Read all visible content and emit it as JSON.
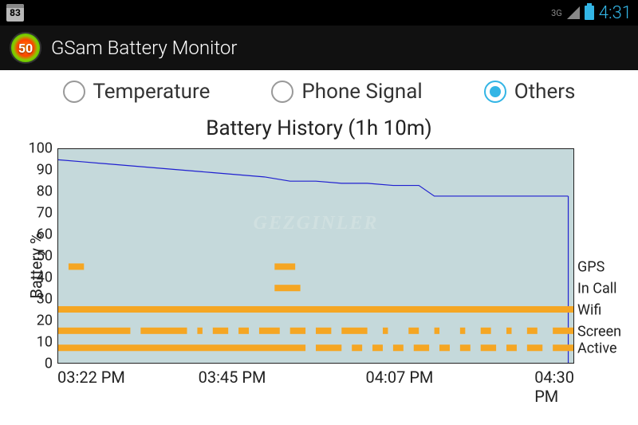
{
  "status_bar": {
    "calendar_day": "83",
    "network": "3G",
    "clock": "4:31",
    "colors": {
      "bg": "#000000",
      "accent": "#33b5e5",
      "muted": "#888888"
    }
  },
  "action_bar": {
    "icon_value": "50",
    "title": "GSam Battery Monitor",
    "bg": "#111111"
  },
  "tabs": {
    "items": [
      {
        "label": "Temperature",
        "selected": false
      },
      {
        "label": "Phone Signal",
        "selected": false
      },
      {
        "label": "Others",
        "selected": true
      }
    ],
    "accent": "#33b5e5"
  },
  "chart": {
    "title": "Battery History (1h 10m)",
    "y_label": "Battery %",
    "y_ticks": [
      0,
      10,
      20,
      30,
      40,
      50,
      60,
      70,
      80,
      90,
      100
    ],
    "ylim": [
      0,
      100
    ],
    "x_ticks": [
      "03:22 PM",
      "03:45 PM",
      "04:07 PM",
      "04:30 PM"
    ],
    "x_positions": [
      0,
      33.8,
      66.2,
      100
    ],
    "plot_bg": "#c5d9db",
    "line_color": "#2020d0",
    "fill_color": "#c5d9db",
    "battery_points": [
      [
        0,
        95
      ],
      [
        5,
        94
      ],
      [
        10,
        93
      ],
      [
        20,
        91
      ],
      [
        30,
        89
      ],
      [
        40,
        87
      ],
      [
        45,
        85
      ],
      [
        50,
        85
      ],
      [
        55,
        84
      ],
      [
        60,
        84
      ],
      [
        65,
        83
      ],
      [
        68,
        83
      ],
      [
        70,
        83
      ],
      [
        73,
        78
      ],
      [
        76,
        78
      ],
      [
        80,
        78
      ],
      [
        85,
        78
      ],
      [
        90,
        78
      ],
      [
        95,
        78
      ],
      [
        99,
        78
      ]
    ],
    "state_bar_color": "#f5a623",
    "state_rows": [
      {
        "label": "GPS",
        "y": 45,
        "segments": [
          [
            2,
            5
          ],
          [
            42,
            46
          ]
        ]
      },
      {
        "label": "In Call",
        "y": 35,
        "segments": [
          [
            42,
            47
          ]
        ]
      },
      {
        "label": "Wifi",
        "y": 25,
        "segments": [
          [
            0,
            100
          ]
        ]
      },
      {
        "label": "Screen",
        "y": 15,
        "segments": [
          [
            0,
            14
          ],
          [
            16,
            25
          ],
          [
            27,
            28
          ],
          [
            30,
            33
          ],
          [
            35,
            37
          ],
          [
            39,
            43
          ],
          [
            45,
            48
          ],
          [
            50,
            53
          ],
          [
            55,
            60
          ],
          [
            63,
            64
          ],
          [
            68,
            70
          ],
          [
            73,
            74
          ],
          [
            78,
            79
          ],
          [
            82,
            84
          ],
          [
            87,
            88
          ],
          [
            91,
            93
          ],
          [
            96,
            100
          ]
        ]
      },
      {
        "label": "Active",
        "y": 7,
        "segments": [
          [
            0,
            48
          ],
          [
            50,
            55
          ],
          [
            57,
            59
          ],
          [
            61,
            63
          ],
          [
            65,
            67
          ],
          [
            69,
            72
          ],
          [
            74,
            76
          ],
          [
            78,
            80
          ],
          [
            82,
            85
          ],
          [
            87,
            89
          ],
          [
            91,
            94
          ],
          [
            96,
            100
          ]
        ]
      }
    ],
    "watermark": "GEZGINLER"
  }
}
